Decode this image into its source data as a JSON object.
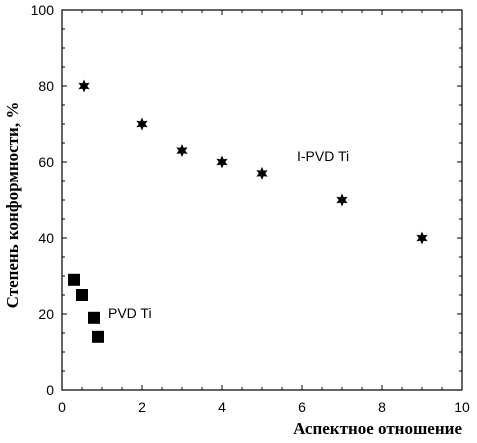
{
  "chart_data": {
    "type": "scatter",
    "title": "",
    "xlabel": "Аспектное отношение",
    "ylabel": "Степень конформности, %",
    "xlim": [
      0,
      10
    ],
    "ylim": [
      0,
      100
    ],
    "xticks": [
      0,
      2,
      4,
      6,
      8,
      10
    ],
    "yticks": [
      0,
      20,
      40,
      60,
      80,
      100
    ],
    "grid": false,
    "series": [
      {
        "name": "I-PVD Ti",
        "marker": "star",
        "color": "#000000",
        "points": [
          {
            "x": 0.55,
            "y": 80
          },
          {
            "x": 2.0,
            "y": 70
          },
          {
            "x": 3.0,
            "y": 63
          },
          {
            "x": 4.0,
            "y": 60
          },
          {
            "x": 5.0,
            "y": 57
          },
          {
            "x": 7.0,
            "y": 50
          },
          {
            "x": 9.0,
            "y": 40
          }
        ]
      },
      {
        "name": "PVD Ti",
        "marker": "square",
        "color": "#000000",
        "points": [
          {
            "x": 0.3,
            "y": 29
          },
          {
            "x": 0.5,
            "y": 25
          },
          {
            "x": 0.8,
            "y": 19
          },
          {
            "x": 0.9,
            "y": 14
          }
        ]
      }
    ]
  }
}
